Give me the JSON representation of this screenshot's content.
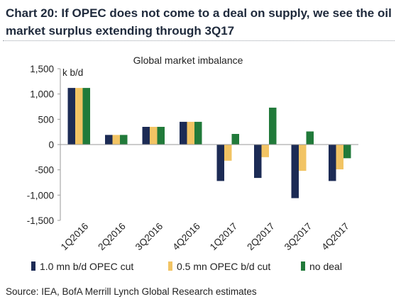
{
  "heading": "Chart 20: If OPEC does not come to a deal on supply, we see the oil market surplus extending through 3Q17",
  "source": "Source: IEA, BofA Merrill Lynch Global Research estimates",
  "chart_data": {
    "type": "bar",
    "title": "Global market imbalance",
    "unit_label": "k b/d",
    "categories": [
      "1Q2016",
      "2Q2016",
      "3Q2016",
      "4Q2016",
      "1Q2017",
      "2Q2017",
      "3Q2017",
      "4Q2017"
    ],
    "series": [
      {
        "name": "1.0 mn b/d OPEC cut",
        "color": "#1c2b55",
        "values": [
          1120,
          190,
          350,
          450,
          -720,
          -660,
          -1060,
          -720
        ]
      },
      {
        "name": "0.5 mn OPEC b/d cut",
        "color": "#f2c464",
        "values": [
          1120,
          190,
          350,
          450,
          -320,
          -250,
          -520,
          -490
        ]
      },
      {
        "name": "no deal",
        "color": "#217a3a",
        "values": [
          1120,
          190,
          350,
          450,
          210,
          730,
          260,
          -270
        ]
      }
    ],
    "y_ticks": [
      "1,500",
      "1,000",
      "500",
      "0",
      "-500",
      "-1,000",
      "-1,500"
    ],
    "ylim": [
      -1500,
      1500
    ],
    "legend_position": "bottom",
    "grid": false
  }
}
